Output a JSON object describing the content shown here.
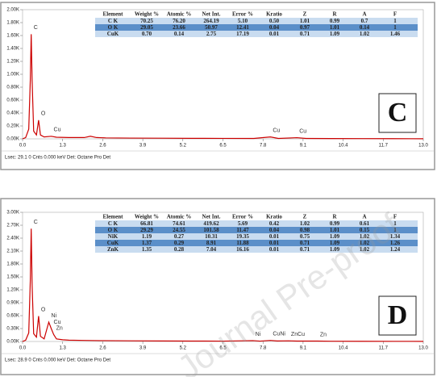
{
  "watermark": "Journal Pre-proof",
  "chart_data": [
    {
      "type": "line",
      "panel_label": "C",
      "color": "#cc0000",
      "x": [
        0,
        0.1,
        0.2,
        0.25,
        0.28,
        0.31,
        0.36,
        0.45,
        0.52,
        0.58,
        0.7,
        0.93,
        1.1,
        1.5,
        2.0,
        2.2,
        2.4,
        2.7,
        3.5,
        4.5,
        5.5,
        6.5,
        7.5,
        8.04,
        8.3,
        8.9,
        9.2,
        10,
        11,
        12,
        13
      ],
      "values": [
        0,
        20,
        150,
        900,
        1620,
        900,
        120,
        60,
        290,
        60,
        30,
        40,
        25,
        20,
        20,
        40,
        20,
        15,
        12,
        10,
        8,
        7,
        6,
        30,
        6,
        18,
        6,
        5,
        4,
        3,
        2
      ],
      "xlim": [
        0,
        13
      ],
      "xticks": [
        {
          "value": 0,
          "label": "0.0"
        },
        1.3,
        2.6,
        3.9,
        5.2,
        6.5,
        7.8,
        9.1,
        10.4,
        11.7,
        {
          "value": 13,
          "label": "13.0"
        }
      ],
      "ylim": [
        0,
        2000
      ],
      "yticks": [
        {
          "value": 0,
          "label": "0.00K"
        },
        {
          "value": 200,
          "label": "0.20K"
        },
        {
          "value": 400,
          "label": "0.40K"
        },
        {
          "value": 600,
          "label": "0.60K"
        },
        {
          "value": 800,
          "label": "0.80K"
        },
        {
          "value": 1000,
          "label": "1.00K"
        },
        {
          "value": 1200,
          "label": "1.20K"
        },
        {
          "value": 1400,
          "label": "1.40K"
        },
        {
          "value": 1600,
          "label": "1.60K"
        },
        {
          "value": 1800,
          "label": "1.80K"
        },
        {
          "value": 2000,
          "label": "2.00K"
        }
      ],
      "annotations": [
        {
          "text": "C",
          "x": 0.28,
          "y": 1620
        },
        {
          "text": "O",
          "x": 0.52,
          "y": 290
        },
        {
          "text": "Cu",
          "x": 0.93,
          "y": 40
        },
        {
          "text": "Cu",
          "x": 8.04,
          "y": 30
        },
        {
          "text": "Cu",
          "x": 8.9,
          "y": 18
        }
      ],
      "footer": "Lsec: 29.1 0 Cnts  0.000 keV Det: Octane Pro Det",
      "table": {
        "columns": [
          "Element",
          "Weight %",
          "Atomic %",
          "Net Int.",
          "Error %",
          "Kratio",
          "Z",
          "R",
          "A",
          "F"
        ],
        "rows": [
          [
            "C K",
            "70.25",
            "76.20",
            "264.19",
            "5.10",
            "0.50",
            "1.01",
            "0.99",
            "0.7",
            "1"
          ],
          [
            "O K",
            "29.05",
            "23.66",
            "50.97",
            "12.41",
            "0.04",
            "0.97",
            "1.01",
            "0.14",
            "1"
          ],
          [
            "CuK",
            "0.70",
            "0.14",
            "2.75",
            "17.19",
            "0.01",
            "0.71",
            "1.09",
            "1.02",
            "1.46"
          ]
        ]
      }
    },
    {
      "type": "line",
      "panel_label": "D",
      "color": "#cc0000",
      "x": [
        0,
        0.1,
        0.2,
        0.25,
        0.28,
        0.31,
        0.36,
        0.45,
        0.52,
        0.58,
        0.7,
        0.85,
        0.93,
        1.01,
        1.1,
        1.3,
        1.5,
        2,
        2.5,
        3.5,
        4.5,
        5.5,
        6.5,
        7.47,
        7.7,
        8.04,
        8.26,
        8.63,
        8.9,
        9.57,
        10,
        11,
        12,
        13
      ],
      "values": [
        0,
        30,
        200,
        1400,
        2620,
        1300,
        180,
        100,
        590,
        120,
        60,
        450,
        300,
        160,
        60,
        40,
        30,
        25,
        20,
        15,
        12,
        10,
        8,
        20,
        8,
        25,
        12,
        15,
        10,
        10,
        6,
        5,
        4,
        3
      ],
      "xlim": [
        0,
        13
      ],
      "xticks": [
        {
          "value": 0,
          "label": "0.0"
        },
        1.3,
        2.6,
        3.9,
        5.2,
        6.5,
        7.8,
        9.1,
        10.4,
        11.7,
        {
          "value": 13,
          "label": "13.0"
        }
      ],
      "ylim": [
        0,
        3000
      ],
      "yticks": [
        {
          "value": 0,
          "label": "0.00K"
        },
        {
          "value": 300,
          "label": "0.30K"
        },
        {
          "value": 600,
          "label": "0.60K"
        },
        {
          "value": 900,
          "label": "0.90K"
        },
        {
          "value": 1200,
          "label": "1.20K"
        },
        {
          "value": 1500,
          "label": "1.50K"
        },
        {
          "value": 1800,
          "label": "1.80K"
        },
        {
          "value": 2100,
          "label": "2.10K"
        },
        {
          "value": 2400,
          "label": "2.40K"
        },
        {
          "value": 2700,
          "label": "2.70K"
        },
        {
          "value": 3000,
          "label": "3.00K"
        }
      ],
      "annotations": [
        {
          "text": "C",
          "x": 0.28,
          "y": 2620
        },
        {
          "text": "O",
          "x": 0.52,
          "y": 590
        },
        {
          "text": "Ni",
          "x": 0.85,
          "y": 450
        },
        {
          "text": "Cu",
          "x": 0.93,
          "y": 300
        },
        {
          "text": "Zn",
          "x": 1.01,
          "y": 160
        },
        {
          "text": "Ni",
          "x": 7.47,
          "y": 20
        },
        {
          "text": "CuNi",
          "x": 8.04,
          "y": 25
        },
        {
          "text": "ZnCu",
          "x": 8.63,
          "y": 15
        },
        {
          "text": "Zn",
          "x": 9.57,
          "y": 10
        }
      ],
      "footer": "Lsec: 28.9 0 Cnts  0.000 keV Det: Octane Pro Det",
      "table": {
        "columns": [
          "Element",
          "Weight %",
          "Atomic %",
          "Net Int.",
          "Error %",
          "Kratio",
          "Z",
          "R",
          "A",
          "F"
        ],
        "rows": [
          [
            "C K",
            "66.81",
            "74.61",
            "419.62",
            "5.69",
            "0.42",
            "1.02",
            "0.99",
            "0.61",
            "1"
          ],
          [
            "O K",
            "29.29",
            "24.55",
            "101.58",
            "11.47",
            "0.04",
            "0.98",
            "1.01",
            "0.15",
            "1"
          ],
          [
            "NiK",
            "1.19",
            "0.27",
            "10.31",
            "19.35",
            "0.01",
            "0.75",
            "1.09",
            "1.02",
            "1.34"
          ],
          [
            "CuK",
            "1.37",
            "0.29",
            "8.91",
            "11.88",
            "0.01",
            "0.71",
            "1.09",
            "1.02",
            "1.26"
          ],
          [
            "ZnK",
            "1.35",
            "0.28",
            "7.04",
            "16.16",
            "0.01",
            "0.71",
            "1.09",
            "1.02",
            "1.24"
          ]
        ]
      }
    }
  ]
}
